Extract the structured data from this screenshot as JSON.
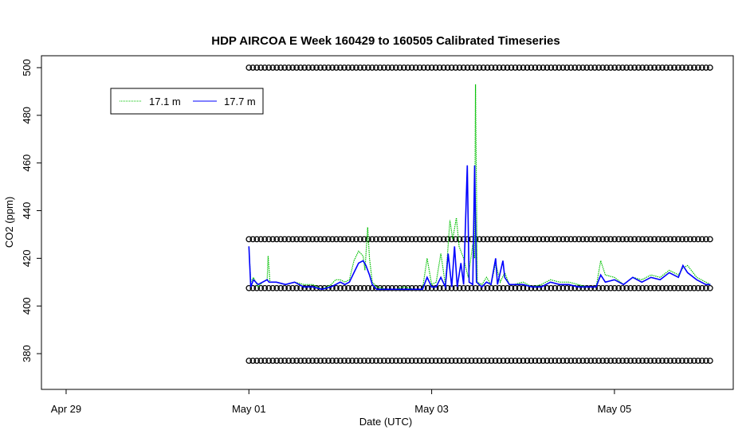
{
  "chart_data": {
    "type": "line",
    "title": "HDP AIRCOA E  Week 160429 to 160505  Calibrated Timeseries",
    "xlabel": "Date (UTC)",
    "ylabel": "CO2 (ppm)",
    "x_ticks": [
      "Apr 29",
      "May 01",
      "May 03",
      "May 05"
    ],
    "x_tick_days": [
      0,
      2,
      4,
      6
    ],
    "xlim_days": [
      -0.27,
      7.3
    ],
    "y_ticks": [
      380,
      400,
      420,
      440,
      460,
      480,
      500
    ],
    "ylim": [
      365,
      505
    ],
    "legend": {
      "position": "top-left",
      "entries": [
        {
          "name": "17.1 m",
          "color": "#00c000",
          "style": "dotted"
        },
        {
          "name": "17.7 m",
          "color": "#0000ff",
          "style": "solid"
        }
      ]
    },
    "series": [
      {
        "name": "17.1 m",
        "color": "#00c000",
        "points": [
          [
            2.0,
            425
          ],
          [
            2.02,
            410
          ],
          [
            2.05,
            412
          ],
          [
            2.1,
            408
          ],
          [
            2.15,
            410
          ],
          [
            2.2,
            411
          ],
          [
            2.21,
            421
          ],
          [
            2.23,
            410
          ],
          [
            2.3,
            410
          ],
          [
            2.4,
            409
          ],
          [
            2.5,
            410
          ],
          [
            2.6,
            409
          ],
          [
            2.7,
            409
          ],
          [
            2.8,
            407
          ],
          [
            2.9,
            409
          ],
          [
            2.95,
            411
          ],
          [
            3.0,
            411
          ],
          [
            3.05,
            410
          ],
          [
            3.1,
            411
          ],
          [
            3.15,
            419
          ],
          [
            3.2,
            423
          ],
          [
            3.25,
            421
          ],
          [
            3.27,
            415
          ],
          [
            3.3,
            433
          ],
          [
            3.32,
            420
          ],
          [
            3.35,
            410
          ],
          [
            3.4,
            408
          ],
          [
            3.5,
            407
          ],
          [
            3.6,
            407
          ],
          [
            3.7,
            408
          ],
          [
            3.8,
            407
          ],
          [
            3.9,
            407
          ],
          [
            3.95,
            420
          ],
          [
            4.0,
            409
          ],
          [
            4.05,
            410
          ],
          [
            4.1,
            422
          ],
          [
            4.15,
            409
          ],
          [
            4.2,
            436
          ],
          [
            4.23,
            428
          ],
          [
            4.27,
            437
          ],
          [
            4.3,
            425
          ],
          [
            4.35,
            420
          ],
          [
            4.4,
            412
          ],
          [
            4.45,
            426
          ],
          [
            4.47,
            420
          ],
          [
            4.48,
            493
          ],
          [
            4.5,
            410
          ],
          [
            4.55,
            409
          ],
          [
            4.6,
            412
          ],
          [
            4.65,
            409
          ],
          [
            4.7,
            418
          ],
          [
            4.75,
            410
          ],
          [
            4.8,
            414
          ],
          [
            4.85,
            409
          ],
          [
            4.9,
            409
          ],
          [
            5.0,
            410
          ],
          [
            5.1,
            408
          ],
          [
            5.2,
            409
          ],
          [
            5.3,
            411
          ],
          [
            5.4,
            410
          ],
          [
            5.5,
            410
          ],
          [
            5.6,
            409
          ],
          [
            5.7,
            408
          ],
          [
            5.8,
            408
          ],
          [
            5.85,
            419
          ],
          [
            5.9,
            413
          ],
          [
            6.0,
            412
          ],
          [
            6.1,
            409
          ],
          [
            6.2,
            412
          ],
          [
            6.3,
            411
          ],
          [
            6.4,
            413
          ],
          [
            6.5,
            412
          ],
          [
            6.6,
            415
          ],
          [
            6.7,
            413
          ],
          [
            6.75,
            416
          ],
          [
            6.8,
            417
          ],
          [
            6.9,
            412
          ],
          [
            7.0,
            410
          ],
          [
            7.05,
            409
          ]
        ]
      },
      {
        "name": "17.7 m",
        "color": "#0000ff",
        "points": [
          [
            2.0,
            425
          ],
          [
            2.02,
            408
          ],
          [
            2.05,
            411
          ],
          [
            2.1,
            409
          ],
          [
            2.15,
            410
          ],
          [
            2.2,
            411
          ],
          [
            2.22,
            410
          ],
          [
            2.3,
            410
          ],
          [
            2.4,
            409
          ],
          [
            2.5,
            410
          ],
          [
            2.6,
            408
          ],
          [
            2.7,
            408
          ],
          [
            2.8,
            407
          ],
          [
            2.9,
            408
          ],
          [
            2.95,
            409
          ],
          [
            3.0,
            410
          ],
          [
            3.05,
            409
          ],
          [
            3.1,
            410
          ],
          [
            3.15,
            414
          ],
          [
            3.2,
            418
          ],
          [
            3.25,
            419
          ],
          [
            3.28,
            417
          ],
          [
            3.32,
            413
          ],
          [
            3.35,
            409
          ],
          [
            3.4,
            407
          ],
          [
            3.5,
            407
          ],
          [
            3.6,
            407
          ],
          [
            3.7,
            407
          ],
          [
            3.8,
            407
          ],
          [
            3.9,
            407
          ],
          [
            3.95,
            412
          ],
          [
            4.0,
            408
          ],
          [
            4.05,
            408
          ],
          [
            4.1,
            412
          ],
          [
            4.15,
            408
          ],
          [
            4.18,
            422
          ],
          [
            4.22,
            408
          ],
          [
            4.25,
            425
          ],
          [
            4.28,
            408
          ],
          [
            4.32,
            418
          ],
          [
            4.35,
            409
          ],
          [
            4.39,
            459
          ],
          [
            4.41,
            410
          ],
          [
            4.45,
            409
          ],
          [
            4.47,
            459
          ],
          [
            4.49,
            410
          ],
          [
            4.55,
            408
          ],
          [
            4.6,
            410
          ],
          [
            4.65,
            409
          ],
          [
            4.7,
            420
          ],
          [
            4.72,
            409
          ],
          [
            4.78,
            419
          ],
          [
            4.8,
            412
          ],
          [
            4.85,
            409
          ],
          [
            4.9,
            409
          ],
          [
            5.0,
            409
          ],
          [
            5.1,
            408
          ],
          [
            5.2,
            408
          ],
          [
            5.3,
            410
          ],
          [
            5.4,
            409
          ],
          [
            5.5,
            409
          ],
          [
            5.6,
            408
          ],
          [
            5.7,
            408
          ],
          [
            5.8,
            408
          ],
          [
            5.85,
            413
          ],
          [
            5.9,
            410
          ],
          [
            6.0,
            411
          ],
          [
            6.1,
            409
          ],
          [
            6.2,
            412
          ],
          [
            6.3,
            410
          ],
          [
            6.4,
            412
          ],
          [
            6.5,
            411
          ],
          [
            6.6,
            414
          ],
          [
            6.7,
            412
          ],
          [
            6.75,
            417
          ],
          [
            6.8,
            414
          ],
          [
            6.9,
            411
          ],
          [
            7.0,
            409
          ],
          [
            7.05,
            409
          ]
        ]
      }
    ],
    "reference_markers": {
      "marker": "circle",
      "x_range_days": [
        2.0,
        7.05
      ],
      "levels": [
        500,
        428,
        407.5,
        377
      ]
    }
  }
}
